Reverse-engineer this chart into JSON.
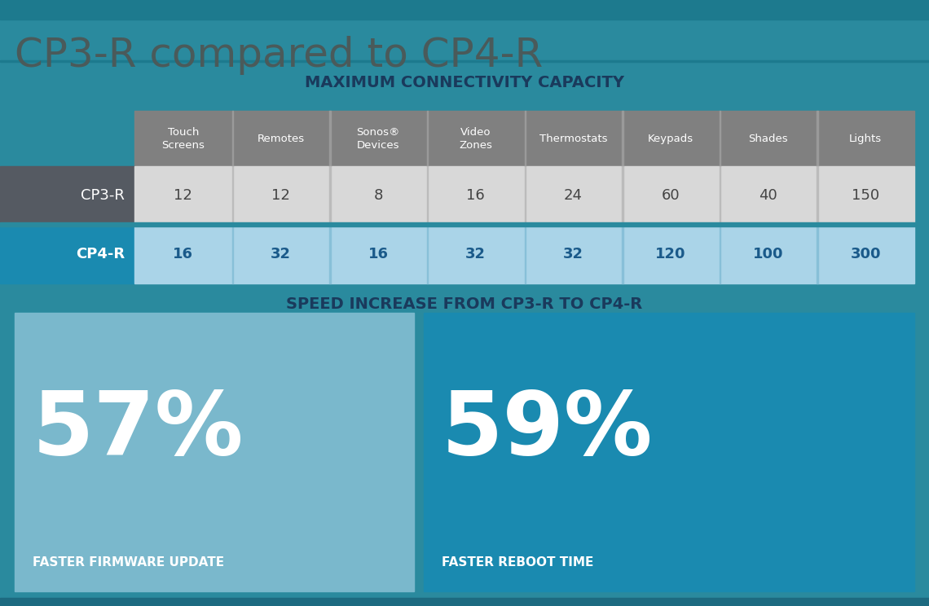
{
  "title": "CP3-R compared to CP4-R",
  "title_color": "#4a5a5a",
  "bg_color": "#2a8a9e",
  "top_stripe_color": "#1d7a8e",
  "section1_title": "MAXIMUM CONNECTIVITY CAPACITY",
  "section2_title": "SPEED INCREASE FROM CP3-R TO CP4-R",
  "section_title_color": "#1a3a5c",
  "columns": [
    "Touch\nScreens",
    "Remotes",
    "Sonos®\nDevices",
    "Video\nZones",
    "Thermostats",
    "Keypads",
    "Shades",
    "Lights"
  ],
  "header_bg": "#808080",
  "header_text_color": "#ffffff",
  "cp3r_values": [
    "12",
    "12",
    "8",
    "16",
    "24",
    "60",
    "40",
    "150"
  ],
  "cp4r_values": [
    "16",
    "32",
    "16",
    "32",
    "32",
    "120",
    "100",
    "300"
  ],
  "cp3r_label": "CP3-R",
  "cp4r_label": "CP4-R",
  "cp3r_row_bg": "#d8d8d8",
  "cp4r_row_bg": "#aad4e8",
  "cp3r_label_bg": "#555a62",
  "cp4r_label_bg": "#1a8ab0",
  "cp3r_label_color": "#ffffff",
  "cp4r_label_color": "#ffffff",
  "cp3r_value_color": "#444444",
  "cp4r_value_color": "#1a5a8a",
  "stat1_value": "57%",
  "stat1_label": "FASTER FIRMWARE UPDATE",
  "stat1_bg": "#7ab8cc",
  "stat2_value": "59%",
  "stat2_label": "FASTER REBOOT TIME",
  "stat2_bg": "#1a8ab0",
  "stat_text_color": "#ffffff",
  "stat_label_color": "#ffffff",
  "bottom_stripe_color": "#1d6a80"
}
